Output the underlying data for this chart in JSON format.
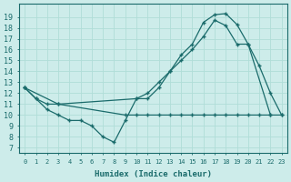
{
  "xlabel": "Humidex (Indice chaleur)",
  "bg_color": "#cdecea",
  "line_color": "#1a6b6b",
  "grid_color": "#b0ddd8",
  "xlim": [
    -0.5,
    23.5
  ],
  "ylim": [
    6.5,
    20.2
  ],
  "yticks": [
    7,
    8,
    9,
    10,
    11,
    12,
    13,
    14,
    15,
    16,
    17,
    18,
    19
  ],
  "xticks": [
    0,
    1,
    2,
    3,
    4,
    5,
    6,
    7,
    8,
    9,
    10,
    11,
    12,
    13,
    14,
    15,
    16,
    17,
    18,
    19,
    20,
    21,
    22,
    23
  ],
  "line_zigzag_x": [
    0,
    1,
    2,
    3,
    4,
    5,
    6,
    7,
    8,
    9,
    10,
    11,
    12,
    13,
    14,
    15,
    16,
    17,
    18,
    19,
    20,
    21,
    22,
    23
  ],
  "line_zigzag_y": [
    12.5,
    11.5,
    10.5,
    10.0,
    9.5,
    9.5,
    9.0,
    8.0,
    7.5,
    9.5,
    11.5,
    11.5,
    12.5,
    14.0,
    15.5,
    16.5,
    18.5,
    19.2,
    19.3,
    18.3,
    16.5,
    14.5,
    12.0,
    10.0
  ],
  "line_flat_x": [
    0,
    1,
    2,
    3,
    9,
    10,
    11,
    12,
    13,
    14,
    15,
    16,
    17,
    18,
    19,
    20,
    21,
    22
  ],
  "line_flat_y": [
    12.5,
    11.5,
    11.0,
    11.0,
    10.0,
    10.0,
    10.0,
    10.0,
    10.0,
    10.0,
    10.0,
    10.0,
    10.0,
    10.0,
    10.0,
    10.0,
    10.0,
    10.0
  ],
  "line_diag_x": [
    0,
    3,
    10,
    11,
    12,
    13,
    14,
    15,
    16,
    17,
    18,
    19,
    20,
    22,
    23
  ],
  "line_diag_y": [
    12.5,
    11.0,
    11.5,
    12.0,
    13.0,
    14.0,
    15.0,
    16.0,
    17.2,
    18.7,
    18.2,
    16.5,
    16.5,
    10.0,
    10.0
  ]
}
